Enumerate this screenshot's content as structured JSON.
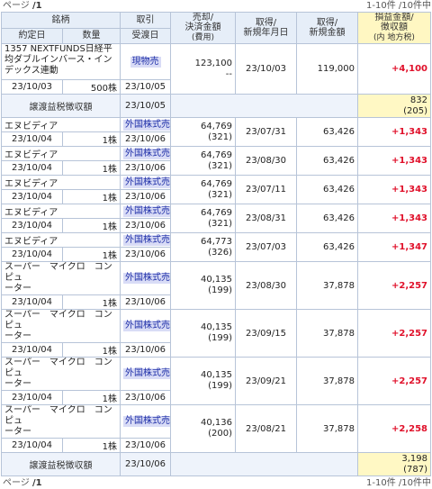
{
  "pager_top": {
    "page_label": "ページ",
    "page_value": "/1",
    "range": "1-10件 /10件中"
  },
  "pager_bottom": {
    "page_label": "ページ",
    "page_value": "/1",
    "range": "1-10件 /10件中"
  },
  "headers": {
    "name": "銘柄",
    "trade_type": "取引",
    "sell_amount_1": "売却/",
    "sell_amount_2": "決済金額",
    "sell_amount_3": "(費用)",
    "acq_date_1": "取得/",
    "acq_date_2": "新規年月日",
    "acq_amount_1": "取得/",
    "acq_amount_2": "新規金額",
    "pl_1": "損益金額/",
    "pl_2": "徴収額",
    "pl_3": "(内 地方税)",
    "contract_date": "約定日",
    "quantity": "数量",
    "delivery_date": "受渡日"
  },
  "trades": [
    {
      "name": "1357 NEXTFUNDS日経平均ダブルインバース・インデックス連動",
      "type": "現物売",
      "amount": "123,100",
      "fee": "--",
      "acq_date": "23/10/03",
      "acq_amount": "119,000",
      "pl": "+4,100",
      "contract": "23/10/03",
      "qty": "500株",
      "delivery": "23/10/05"
    }
  ],
  "tax1": {
    "label": "譲渡益税徴収額",
    "date": "23/10/05",
    "pl": "832",
    "local": "(205)"
  },
  "trades2": [
    {
      "name": "エヌビディア",
      "type": "外国株式売",
      "amount": "64,769",
      "fee": "(321)",
      "acq_date": "23/07/31",
      "acq_amount": "63,426",
      "pl": "+1,343",
      "contract": "23/10/04",
      "qty": "1株",
      "delivery": "23/10/06"
    },
    {
      "name": "エヌビディア",
      "type": "外国株式売",
      "amount": "64,769",
      "fee": "(321)",
      "acq_date": "23/08/30",
      "acq_amount": "63,426",
      "pl": "+1,343",
      "contract": "23/10/04",
      "qty": "1株",
      "delivery": "23/10/06"
    },
    {
      "name": "エヌビディア",
      "type": "外国株式売",
      "amount": "64,769",
      "fee": "(321)",
      "acq_date": "23/07/11",
      "acq_amount": "63,426",
      "pl": "+1,343",
      "contract": "23/10/04",
      "qty": "1株",
      "delivery": "23/10/06"
    },
    {
      "name": "エヌビディア",
      "type": "外国株式売",
      "amount": "64,769",
      "fee": "(321)",
      "acq_date": "23/08/31",
      "acq_amount": "63,426",
      "pl": "+1,343",
      "contract": "23/10/04",
      "qty": "1株",
      "delivery": "23/10/06"
    },
    {
      "name": "エヌビディア",
      "type": "外国株式売",
      "amount": "64,773",
      "fee": "(326)",
      "acq_date": "23/07/03",
      "acq_amount": "63,426",
      "pl": "+1,347",
      "contract": "23/10/04",
      "qty": "1株",
      "delivery": "23/10/06"
    }
  ],
  "trades3": [
    {
      "name1": "スーパー　マイクロ　コンピュ",
      "name2": "ーター",
      "type": "外国株式売",
      "amount": "40,135",
      "fee": "(199)",
      "acq_date": "23/08/30",
      "acq_amount": "37,878",
      "pl": "+2,257",
      "contract": "23/10/04",
      "qty": "1株",
      "delivery": "23/10/06"
    },
    {
      "name1": "スーパー　マイクロ　コンピュ",
      "name2": "ーター",
      "type": "外国株式売",
      "amount": "40,135",
      "fee": "(199)",
      "acq_date": "23/09/15",
      "acq_amount": "37,878",
      "pl": "+2,257",
      "contract": "23/10/04",
      "qty": "1株",
      "delivery": "23/10/06"
    },
    {
      "name1": "スーパー　マイクロ　コンピュ",
      "name2": "ーター",
      "type": "外国株式売",
      "amount": "40,135",
      "fee": "(199)",
      "acq_date": "23/09/21",
      "acq_amount": "37,878",
      "pl": "+2,257",
      "contract": "23/10/04",
      "qty": "1株",
      "delivery": "23/10/06"
    },
    {
      "name1": "スーパー　マイクロ　コンピュ",
      "name2": "ーター",
      "type": "外国株式売",
      "amount": "40,136",
      "fee": "(200)",
      "acq_date": "23/08/21",
      "acq_amount": "37,878",
      "pl": "+2,258",
      "contract": "23/10/04",
      "qty": "1株",
      "delivery": "23/10/06"
    }
  ],
  "tax2": {
    "label": "譲渡益税徴収額",
    "date": "23/10/06",
    "pl": "3,198",
    "local": "(787)"
  }
}
